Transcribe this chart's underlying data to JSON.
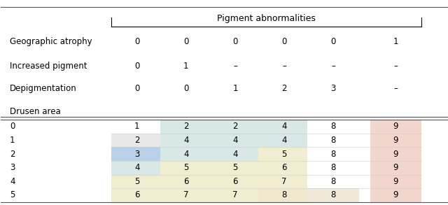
{
  "pigment_header": "Pigment abnormalities",
  "top_rows": [
    {
      "label": "Geographic atrophy",
      "values": [
        "0",
        "0",
        "0",
        "0",
        "0",
        "1"
      ]
    },
    {
      "label": "Increased pigment",
      "values": [
        "0",
        "1",
        "–",
        "–",
        "–",
        "–"
      ]
    },
    {
      "label": "Depigmentation",
      "values": [
        "0",
        "0",
        "1",
        "2",
        "3",
        "–"
      ]
    },
    {
      "label": "Drusen area",
      "values": [
        "",
        "",
        "",
        "",
        "",
        ""
      ]
    }
  ],
  "drusen_rows": [
    {
      "label": "0",
      "values": [
        "1",
        "2",
        "2",
        "4",
        "8",
        "9"
      ]
    },
    {
      "label": "1",
      "values": [
        "2",
        "4",
        "4",
        "4",
        "8",
        "9"
      ]
    },
    {
      "label": "2",
      "values": [
        "3",
        "4",
        "4",
        "5",
        "8",
        "9"
      ]
    },
    {
      "label": "3",
      "values": [
        "4",
        "5",
        "5",
        "6",
        "8",
        "9"
      ]
    },
    {
      "label": "4",
      "values": [
        "5",
        "6",
        "6",
        "7",
        "8",
        "9"
      ]
    },
    {
      "label": "5",
      "values": [
        "6",
        "7",
        "7",
        "8",
        "8",
        "9"
      ]
    }
  ],
  "cell_colors": [
    [
      "#ffffff",
      "#d8e8e4",
      "#d8e8e4",
      "#d8e8e4",
      "#ffffff",
      "#f2d5cc"
    ],
    [
      "#e8e8e8",
      "#d8e8e4",
      "#d8e8e4",
      "#d8e8e4",
      "#ffffff",
      "#f2d5cc"
    ],
    [
      "#b8d0e8",
      "#d8e8e4",
      "#d8e8e4",
      "#f0edd0",
      "#ffffff",
      "#f2d5cc"
    ],
    [
      "#d8e8e4",
      "#f0edd0",
      "#f0edd0",
      "#f0edd0",
      "#ffffff",
      "#f2d5cc"
    ],
    [
      "#f0edd0",
      "#f0edd0",
      "#f0edd0",
      "#f0edd0",
      "#ffffff",
      "#f2d5cc"
    ],
    [
      "#f0edd0",
      "#f0edd0",
      "#f0edd0",
      "#f0e8cc",
      "#f0e8d8",
      "#f2d5cc"
    ]
  ],
  "fig_width": 6.4,
  "fig_height": 2.93
}
